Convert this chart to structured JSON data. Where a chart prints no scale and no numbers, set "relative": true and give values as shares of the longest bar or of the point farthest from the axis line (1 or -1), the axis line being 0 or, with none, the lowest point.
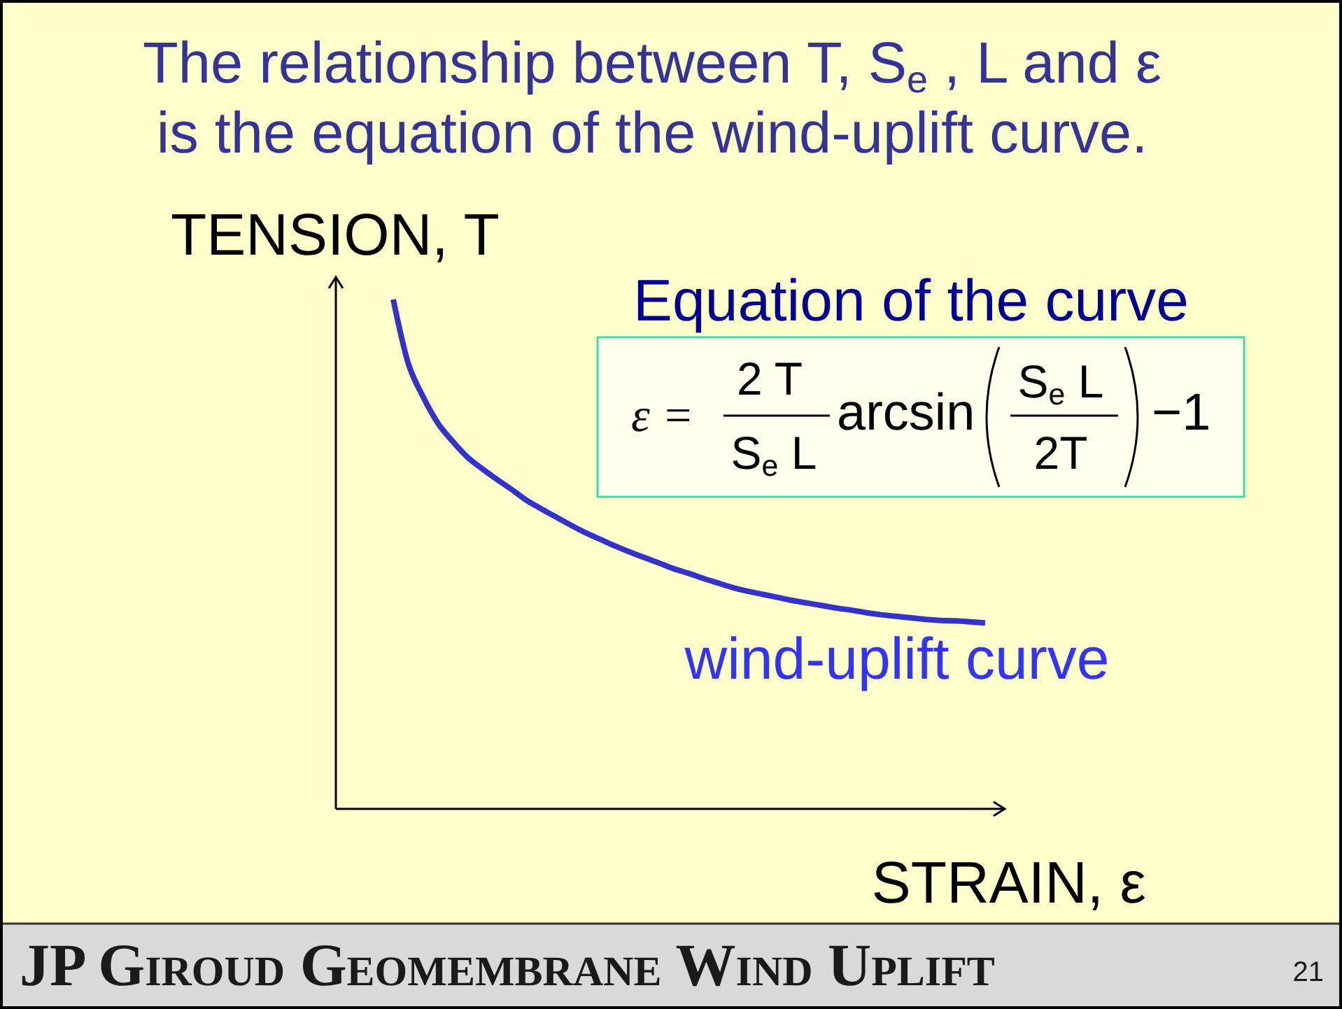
{
  "chart_data": {
    "type": "line",
    "title": "The relationship between T, S$_{e}$ , L and ε\nis the equation of the wind-uplift curve.",
    "xlabel": "STRAIN, ε",
    "ylabel": "TENSION, T",
    "relative": true,
    "categories": [
      null,
      null,
      null,
      null,
      null,
      null,
      null,
      null,
      null,
      null,
      null,
      null,
      null,
      null,
      null,
      null,
      null,
      null,
      null,
      null,
      null,
      null,
      null,
      null,
      null,
      null,
      null,
      null,
      null,
      null,
      null,
      null,
      null,
      null,
      null,
      null,
      null,
      null,
      null,
      null,
      null
    ],
    "series": [
      {
        "name": "wind-uplift curve",
        "color": "#3333cc",
        "values": [
          1.0,
          0.876,
          0.81,
          0.758,
          0.722,
          0.691,
          0.668,
          0.647,
          0.627,
          0.606,
          0.589,
          0.573,
          0.557,
          0.542,
          0.529,
          0.516,
          0.504,
          0.493,
          0.482,
          0.471,
          0.462,
          0.452,
          0.443,
          0.434,
          0.427,
          0.421,
          0.415,
          0.409,
          0.404,
          0.399,
          0.394,
          0.39,
          0.385,
          0.381,
          0.378,
          0.375,
          0.372,
          0.37,
          0.369,
          0.367,
          0.365
        ]
      }
    ],
    "annotations": [
      "Equation of the curve",
      "ε =",
      "2 T",
      "S$_{e}$ L",
      "arcsin",
      "S$_{e}$ L",
      "2T",
      "−1",
      "JP Giroud Geomembrane Wind Uplift",
      "21"
    ]
  }
}
